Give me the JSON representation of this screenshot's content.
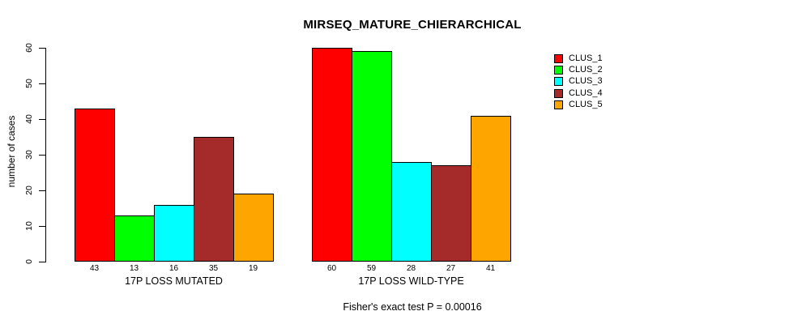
{
  "page": {
    "background": "#ffffff",
    "foreground": "#000000"
  },
  "chart_data": {
    "type": "bar",
    "title": "MIRSEQ_MATURE_CHIERARCHICAL",
    "ylabel": "number of cases",
    "xlabel": "",
    "ylim": [
      0,
      60
    ],
    "yticks": [
      0,
      10,
      20,
      30,
      40,
      50,
      60
    ],
    "grid": false,
    "legend_position": "right-inside",
    "categories": [
      "17P LOSS MUTATED",
      "17P LOSS WILD-TYPE"
    ],
    "series": [
      {
        "name": "CLUS_1",
        "color": "#ff0000",
        "values": [
          43,
          60
        ]
      },
      {
        "name": "CLUS_2",
        "color": "#00ff00",
        "values": [
          13,
          59
        ]
      },
      {
        "name": "CLUS_3",
        "color": "#00ffff",
        "values": [
          16,
          28
        ]
      },
      {
        "name": "CLUS_4",
        "color": "#a52a2a",
        "values": [
          35,
          27
        ]
      },
      {
        "name": "CLUS_5",
        "color": "#ffa500",
        "values": [
          19,
          41
        ]
      }
    ],
    "bar_value_labels": [
      [
        43,
        13,
        16,
        35,
        19
      ],
      [
        60,
        59,
        28,
        27,
        41
      ]
    ],
    "bar_border_color": "#000000",
    "annotation": "Fisher's exact test P = 0.00016"
  }
}
